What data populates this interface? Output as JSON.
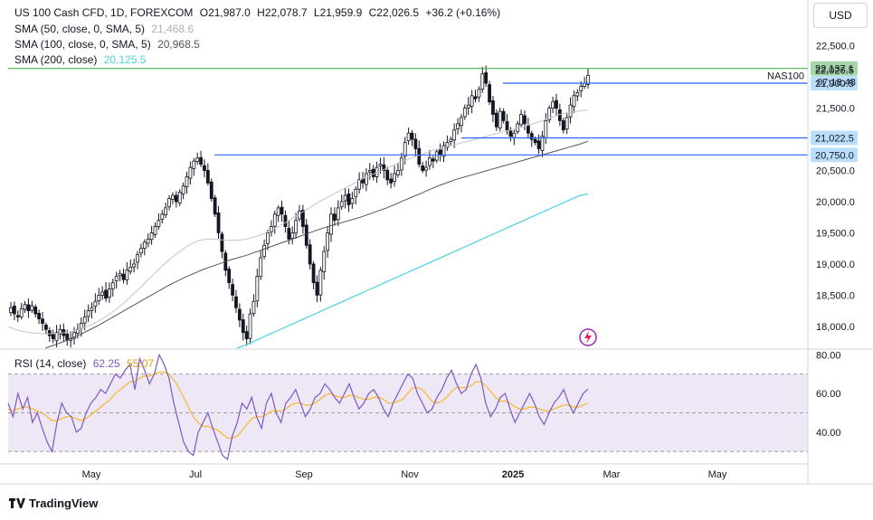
{
  "header": {
    "symbol": "US 100 Cash CFD, 1D, FOREXCOM",
    "o_label": "O",
    "o": "21,987.0",
    "h_label": "H",
    "h": "22,078.7",
    "l_label": "L",
    "l": "21,959.9",
    "c_label": "C",
    "c": "22,026.5",
    "change": "+36.2 (+0.16%)"
  },
  "indicators": {
    "sma50": {
      "label": "SMA (50, close, 0, SMA, 5)",
      "value": "21,468.6",
      "color": "#c4c4c4"
    },
    "sma100": {
      "label": "SMA (100, close, 0, SMA, 5)",
      "value": "20,968.5",
      "color": "#555555"
    },
    "sma200": {
      "label": "SMA (200, close)",
      "value": "20,125.5",
      "color": "#4dd0e1"
    },
    "rsi": {
      "label": "RSI (14, close)",
      "value": "62.25",
      "ma_value": "55.07",
      "color": "#7e57c2",
      "ma_color": "#f5b82e"
    }
  },
  "currency_button": "USD",
  "brand": "TradingView",
  "price_labels": {
    "resistance": "22,137.1",
    "last": "22,026.5",
    "countdown": "07:18:48",
    "level1": "21,900.5",
    "level2": "21,022.5",
    "level3": "20,750.0",
    "nas_tag": "NAS100"
  },
  "colors": {
    "up": "#131722",
    "down": "#131722",
    "hline": "#2962ff",
    "resistance": "#4caf50",
    "rsi_band": "#ede7f6"
  },
  "chart_data": {
    "type": "candlestick",
    "price_axis": {
      "ticks": [
        18000,
        18500,
        19000,
        19500,
        20000,
        20500,
        21000,
        21500,
        22500
      ],
      "range": [
        17650,
        22800
      ]
    },
    "time_axis": {
      "labels": [
        "May",
        "Jul",
        "Sep",
        "Nov",
        "2025",
        "Mar",
        "May"
      ]
    },
    "horizontal_levels": [
      {
        "price": 22137.1,
        "color": "#4caf50"
      },
      {
        "price": 21900.5,
        "color": "#2962ff"
      },
      {
        "price": 21022.5,
        "color": "#2962ff"
      },
      {
        "price": 20750.0,
        "color": "#2962ff"
      }
    ],
    "close": [
      18300,
      18200,
      18150,
      18280,
      18350,
      18250,
      18330,
      18200,
      18120,
      18050,
      17950,
      17850,
      17800,
      17900,
      17950,
      17850,
      17780,
      17800,
      17900,
      17950,
      18050,
      18150,
      18250,
      18300,
      18400,
      18500,
      18550,
      18450,
      18600,
      18700,
      18800,
      18850,
      18750,
      18900,
      18950,
      19000,
      19150,
      19250,
      19350,
      19400,
      19500,
      19600,
      19700,
      19800,
      19900,
      20050,
      20100,
      20000,
      20150,
      20250,
      20400,
      20550,
      20650,
      20700,
      20600,
      20500,
      20300,
      20050,
      19800,
      19500,
      19200,
      18900,
      18700,
      18500,
      18300,
      18100,
      17900,
      17800,
      18200,
      18400,
      18800,
      19100,
      19300,
      19500,
      19600,
      19800,
      19900,
      19800,
      19600,
      19400,
      19500,
      19700,
      19850,
      19600,
      19300,
      19000,
      18700,
      18500,
      18900,
      19200,
      19500,
      19800,
      19700,
      19900,
      20000,
      20100,
      19950,
      20050,
      20200,
      20350,
      20300,
      20450,
      20500,
      20400,
      20550,
      20600,
      20500,
      20350,
      20300,
      20450,
      20500,
      20700,
      20950,
      21100,
      21000,
      20850,
      20600,
      20500,
      20550,
      20700,
      20650,
      20800,
      20750,
      20900,
      20950,
      21000,
      21150,
      21250,
      21350,
      21500,
      21550,
      21700,
      21650,
      21800,
      22050,
      21900,
      21600,
      21400,
      21200,
      21450,
      21300,
      21150,
      21050,
      21100,
      21250,
      21400,
      21250,
      21100,
      21000,
      20950,
      20850,
      21050,
      21300,
      21500,
      21600,
      21500,
      21300,
      21150,
      21350,
      21550,
      21700,
      21750,
      21850,
      21900,
      22026.5
    ],
    "sma50": [
      18000,
      17950,
      17920,
      17900,
      17890,
      17880,
      17880,
      17890,
      17900,
      17920,
      17950,
      17990,
      18040,
      18100,
      18170,
      18250,
      18340,
      18440,
      18550,
      18660,
      18770,
      18880,
      18990,
      19090,
      19180,
      19260,
      19330,
      19380,
      19400,
      19400,
      19390,
      19380,
      19380,
      19390,
      19410,
      19440,
      19480,
      19530,
      19590,
      19650,
      19720,
      19790,
      19860,
      19930,
      20000,
      20060,
      20120,
      20180,
      20240,
      20300,
      20360,
      20410,
      20460,
      20510,
      20560,
      20610,
      20660,
      20700,
      20740,
      20780,
      20820,
      20850,
      20880,
      20910,
      20940,
      20970,
      21000,
      21030,
      21060,
      21090,
      21120,
      21150,
      21180,
      21210,
      21240,
      21280,
      21320,
      21360,
      21400,
      21420,
      21440,
      21460,
      21468.6
    ],
    "sma100": [
      17650,
      17700,
      17750,
      17810,
      17870,
      17940,
      18010,
      18090,
      18170,
      18250,
      18330,
      18410,
      18490,
      18570,
      18650,
      18720,
      18790,
      18850,
      18910,
      18960,
      19010,
      19060,
      19100,
      19140,
      19190,
      19240,
      19290,
      19340,
      19390,
      19440,
      19490,
      19540,
      19590,
      19630,
      19670,
      19710,
      19750,
      19800,
      19850,
      19900,
      19960,
      20020,
      20080,
      20140,
      20200,
      20260,
      20310,
      20360,
      20400,
      20440,
      20480,
      20520,
      20560,
      20600,
      20640,
      20680,
      20720,
      20760,
      20800,
      20840,
      20880,
      20920,
      20968.5
    ],
    "sma200": [
      17650,
      17700,
      17760,
      17820,
      17880,
      17940,
      18000,
      18060,
      18120,
      18180,
      18240,
      18300,
      18360,
      18420,
      18480,
      18540,
      18600,
      18660,
      18720,
      18780,
      18840,
      18900,
      18960,
      19020,
      19080,
      19140,
      19200,
      19260,
      19320,
      19380,
      19440,
      19500,
      19560,
      19620,
      19680,
      19740,
      19800,
      19860,
      19920,
      19980,
      20040,
      20100,
      20125.5
    ],
    "rsi_axis": {
      "ticks": [
        40,
        60,
        80
      ],
      "bands": [
        30,
        50,
        70
      ],
      "range": [
        25,
        82
      ]
    },
    "rsi": [
      55,
      48,
      60,
      52,
      58,
      45,
      50,
      42,
      35,
      30,
      45,
      55,
      50,
      48,
      40,
      42,
      50,
      55,
      58,
      62,
      60,
      65,
      70,
      68,
      72,
      75,
      62,
      78,
      72,
      65,
      70,
      80,
      75,
      68,
      55,
      45,
      35,
      30,
      28,
      40,
      45,
      50,
      42,
      35,
      28,
      26,
      38,
      45,
      55,
      52,
      58,
      48,
      42,
      55,
      60,
      50,
      45,
      55,
      58,
      62,
      55,
      48,
      52,
      58,
      60,
      65,
      62,
      58,
      55,
      60,
      65,
      58,
      52,
      55,
      60,
      62,
      58,
      52,
      48,
      55,
      60,
      65,
      70,
      68,
      60,
      55,
      50,
      52,
      58,
      62,
      68,
      72,
      65,
      60,
      62,
      70,
      75,
      68,
      55,
      48,
      52,
      58,
      60,
      52,
      45,
      50,
      55,
      60,
      55,
      48,
      44,
      50,
      55,
      58,
      62,
      55,
      50,
      55,
      60,
      62.25
    ],
    "rsi_ma": [
      52,
      51,
      52,
      53,
      53,
      52,
      51,
      50,
      48,
      46,
      46,
      47,
      48,
      48,
      47,
      46,
      47,
      49,
      51,
      53,
      55,
      57,
      60,
      62,
      64,
      66,
      66,
      68,
      69,
      69,
      70,
      71,
      71,
      70,
      67,
      63,
      58,
      53,
      48,
      45,
      43,
      43,
      42,
      41,
      39,
      37,
      37,
      38,
      41,
      44,
      47,
      48,
      48,
      49,
      51,
      51,
      51,
      52,
      54,
      55,
      55,
      54,
      54,
      55,
      57,
      59,
      60,
      59,
      58,
      58,
      59,
      59,
      58,
      57,
      57,
      58,
      58,
      57,
      55,
      55,
      56,
      57,
      60,
      63,
      63,
      62,
      59,
      56,
      55,
      56,
      58,
      61,
      63,
      63,
      63,
      64,
      66,
      66,
      64,
      61,
      58,
      56,
      56,
      55,
      53,
      52,
      52,
      53,
      53,
      52,
      51,
      51,
      52,
      53,
      54,
      54,
      53,
      53,
      54,
      55.07
    ]
  }
}
